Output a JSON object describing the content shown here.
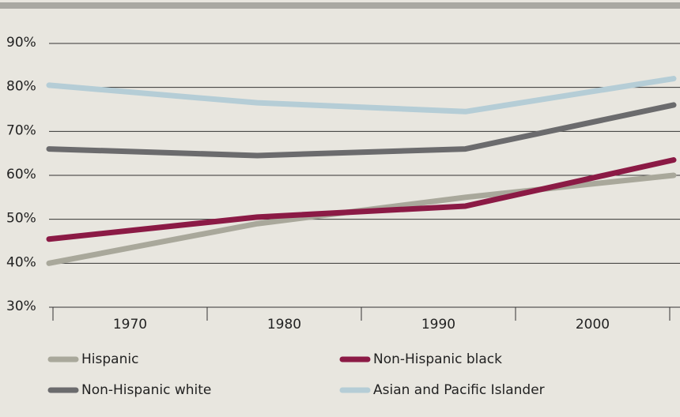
{
  "chart_data": {
    "type": "line",
    "categories": [
      "1970",
      "1980",
      "1990",
      "2000"
    ],
    "series": [
      {
        "name": "Hispanic",
        "color": "#a9a89b",
        "values": [
          40,
          49,
          55,
          60
        ]
      },
      {
        "name": "Non-Hispanic black",
        "color": "#8b1a45",
        "values": [
          45.5,
          50.5,
          53,
          63.5
        ]
      },
      {
        "name": "Non-Hispanic white",
        "color": "#6b6b6d",
        "values": [
          66,
          64.5,
          66,
          76
        ]
      },
      {
        "name": "Asian and Pacific Islander",
        "color": "#b5cdd6",
        "values": [
          80.5,
          76.5,
          74.5,
          82
        ]
      }
    ],
    "ylim": [
      30,
      90
    ],
    "yticks": [
      {
        "value": 30,
        "label": "30%"
      },
      {
        "value": 40,
        "label": "40%"
      },
      {
        "value": 50,
        "label": "50%"
      },
      {
        "value": 60,
        "label": "60%"
      },
      {
        "value": 70,
        "label": "70%"
      },
      {
        "value": 80,
        "label": "80%"
      },
      {
        "value": 90,
        "label": "90%"
      }
    ],
    "grid": true
  }
}
